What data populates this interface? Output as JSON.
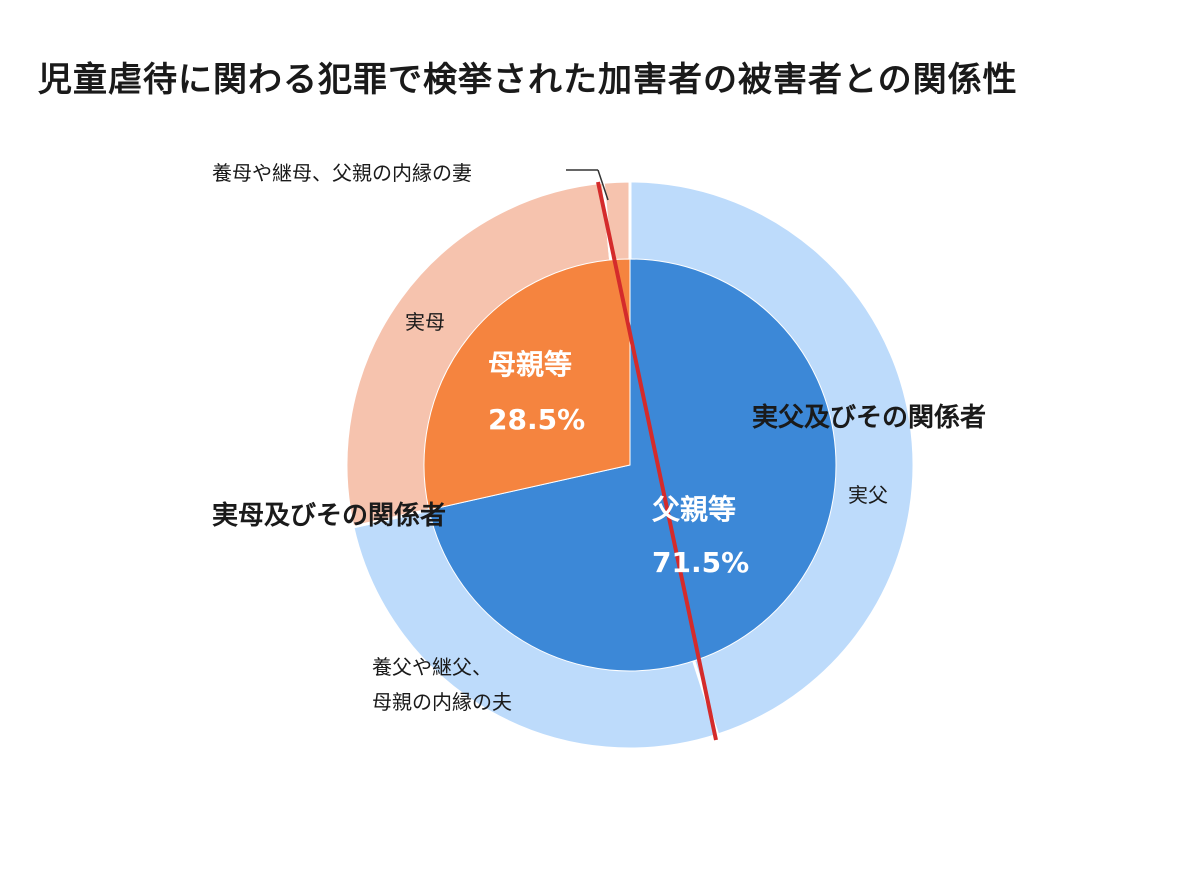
{
  "title": "児童虐待に関わる犯罪で検挙された加害者の被害者との関係性",
  "chart_data": {
    "type": "pie",
    "title": "児童虐待に関わる犯罪で検挙された加害者の被害者との関係性",
    "inner": [
      {
        "name": "父親等",
        "value": 71.5,
        "label": "71.5%",
        "color": "#3c88d7"
      },
      {
        "name": "母親等",
        "value": 28.5,
        "label": "28.5%",
        "color": "#f5843f"
      }
    ],
    "outer": [
      {
        "name": "実父",
        "value": 45.0,
        "color": "#bddbfb"
      },
      {
        "name": "養父や継父、母親の内縁の夫",
        "value": 26.5,
        "color": "#bddbfb"
      },
      {
        "name": "実母",
        "value": 27.0,
        "color": "#f6c3ae"
      },
      {
        "name": "養母や継母、父親の内縁の妻",
        "value": 1.5,
        "color": "#f6c3ae"
      }
    ],
    "group_labels": {
      "father_side": "実父及びその関係者",
      "mother_side": "実母及びその関係者"
    },
    "outer_labels": {
      "biological_father": "実父",
      "step_father_line1": "養父や継父、",
      "step_father_line2": "母親の内縁の夫",
      "biological_mother": "実母",
      "step_mother": "養母や継母、父親の内縁の妻"
    },
    "divider_color": "#d42b2b"
  }
}
